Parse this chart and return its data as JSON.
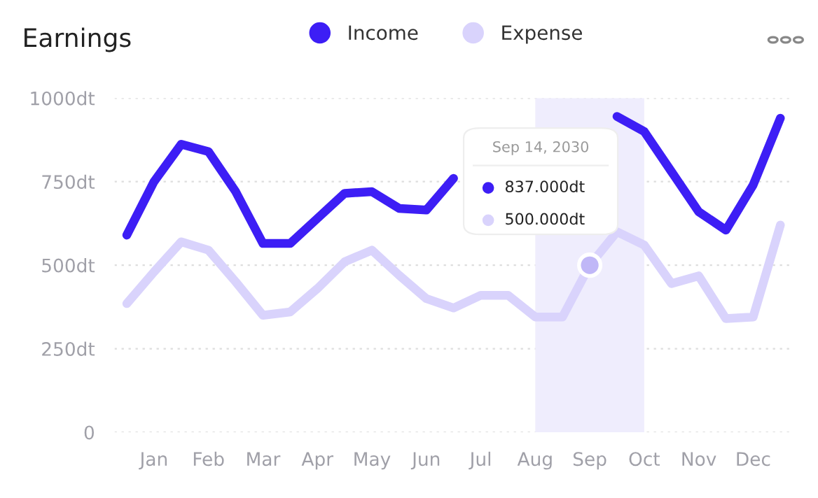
{
  "chart_data": {
    "type": "line",
    "title": "Earnings",
    "categories": [
      null,
      "Jan",
      null,
      "Feb",
      null,
      "Mar",
      null,
      "Apr",
      null,
      "May",
      null,
      "Jun",
      null,
      "Jul",
      null,
      "Aug",
      null,
      "Sep",
      null,
      "Oct",
      null,
      "Nov",
      null,
      "Dec",
      null
    ],
    "ylim": [
      0,
      1000
    ],
    "yticks": [
      0,
      {
        "value": 250,
        "label": "250dt"
      },
      {
        "value": 500,
        "label": "500dt"
      },
      {
        "value": 750,
        "label": "750dt"
      },
      {
        "value": 1000,
        "label": "1000dt"
      }
    ],
    "series": [
      {
        "name": "Income",
        "color": "#3d1ef5",
        "values": [
          590,
          750,
          862,
          840,
          720,
          565,
          565,
          640,
          715,
          720,
          670,
          665,
          760,
          null,
          null,
          null,
          null,
          null,
          945,
          900,
          780,
          660,
          605,
          740,
          940
        ]
      },
      {
        "name": "Expense",
        "color": "#d9d3fc",
        "values": [
          385,
          480,
          570,
          545,
          450,
          350,
          360,
          430,
          510,
          545,
          470,
          400,
          372,
          410,
          410,
          345,
          345,
          500,
          600,
          560,
          445,
          468,
          340,
          345,
          620
        ]
      }
    ],
    "bands": [
      {
        "axis": "x",
        "from": "Aug",
        "to": "Oct",
        "color": "#efedfd"
      }
    ],
    "annotations": [
      "Sep 14, 2030",
      "837.000dt",
      {
        "text": "500.000dt",
        "x": "Sep",
        "y": 500
      }
    ],
    "grid": "y",
    "legend": "top"
  }
}
